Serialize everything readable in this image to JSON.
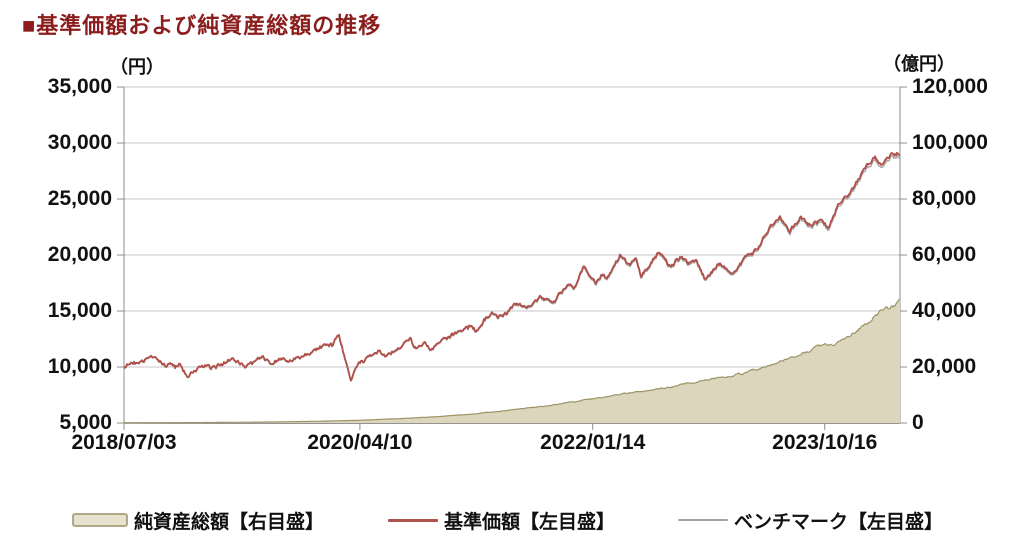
{
  "header": {
    "title": "■基準価額および純資産総額の推移"
  },
  "axes": {
    "left_unit": "（円）",
    "right_unit": "（億円）"
  },
  "colors": {
    "title": "#8b1d1d",
    "nav_line": "#b0524b",
    "benchmark_line": "#a3a3a3",
    "area_fill": "#dbd6bc",
    "area_stroke": "#9e9468",
    "legend_area_fill": "#e6e2cf",
    "legend_area_border": "#b0a883",
    "grid": "#c6c6c6",
    "axis": "#8c8c8c",
    "axis_bottom": "#707070",
    "text": "#111111"
  },
  "legend": {
    "items": [
      {
        "label": "純資産総額【右目盛】",
        "swatch": "area"
      },
      {
        "label": "基準価額【左目盛】",
        "swatch": "nav-line"
      },
      {
        "label": "ベンチマーク【左目盛】",
        "swatch": "benchmark-line"
      }
    ]
  },
  "chart_data": {
    "type": "combo-area-line",
    "title": "基準価額および純資産総額の推移",
    "grid": true,
    "legend_position": "bottom",
    "left_axis": {
      "unit": "円",
      "min": 5000,
      "max": 35000,
      "step": 5000,
      "tick_labels": [
        "35,000",
        "30,000",
        "25,000",
        "20,000",
        "15,000",
        "10,000",
        "5,000"
      ]
    },
    "right_axis": {
      "unit": "億円",
      "min": 0,
      "max": 120000,
      "step": 20000,
      "tick_labels": [
        "120,000",
        "100,000",
        "80,000",
        "60,000",
        "40,000",
        "20,000",
        "0"
      ]
    },
    "x_ticks": [
      {
        "t": 0.0,
        "label": "2018/07/03"
      },
      {
        "t": 0.304,
        "label": "2020/04/10"
      },
      {
        "t": 0.604,
        "label": "2022/01/14"
      },
      {
        "t": 0.903,
        "label": "2023/10/16"
      }
    ],
    "series": [
      {
        "role": "assets",
        "name": "純資産総額【右目盛】",
        "type": "area",
        "axis": "right",
        "points": [
          [
            0,
            20
          ],
          [
            0.05,
            90
          ],
          [
            0.1,
            160
          ],
          [
            0.15,
            260
          ],
          [
            0.2,
            400
          ],
          [
            0.25,
            620
          ],
          [
            0.301,
            950
          ],
          [
            0.35,
            1500
          ],
          [
            0.4,
            2200
          ],
          [
            0.45,
            3200
          ],
          [
            0.5,
            4700
          ],
          [
            0.55,
            6300
          ],
          [
            0.604,
            8500
          ],
          [
            0.65,
            10700
          ],
          [
            0.666,
            11200
          ],
          [
            0.7,
            12600
          ],
          [
            0.75,
            15600
          ],
          [
            0.783,
            16600
          ],
          [
            0.8,
            17900
          ],
          [
            0.83,
            20600
          ],
          [
            0.86,
            23600
          ],
          [
            0.89,
            26800
          ],
          [
            0.903,
            28200
          ],
          [
            0.912,
            28600
          ],
          [
            0.918,
            28400
          ],
          [
            0.935,
            31200
          ],
          [
            0.952,
            34800
          ],
          [
            0.97,
            38600
          ],
          [
            0.985,
            41000
          ],
          [
            1,
            43000
          ]
        ]
      },
      {
        "role": "benchmark",
        "name": "ベンチマーク【左目盛】",
        "type": "line",
        "axis": "left",
        "points": [
          [
            0,
            10108
          ],
          [
            0.02,
            10355
          ],
          [
            0.04,
            10800
          ],
          [
            0.055,
            9910
          ],
          [
            0.059,
            10405
          ],
          [
            0.066,
            9960
          ],
          [
            0.071,
            10306
          ],
          [
            0.081,
            8910
          ],
          [
            0.101,
            10009
          ],
          [
            0.115,
            9910
          ],
          [
            0.14,
            10750
          ],
          [
            0.156,
            10158
          ],
          [
            0.18,
            10948
          ],
          [
            0.19,
            10355
          ],
          [
            0.206,
            10899
          ],
          [
            0.215,
            10553
          ],
          [
            0.252,
            11738
          ],
          [
            0.262,
            12084
          ],
          [
            0.269,
            11788
          ],
          [
            0.277,
            12825
          ],
          [
            0.292,
            8560
          ],
          [
            0.301,
            10207
          ],
          [
            0.328,
            11343
          ],
          [
            0.338,
            10899
          ],
          [
            0.368,
            12430
          ],
          [
            0.378,
            11491
          ],
          [
            0.387,
            12035
          ],
          [
            0.395,
            11442
          ],
          [
            0.424,
            12726
          ],
          [
            0.446,
            13566
          ],
          [
            0.453,
            13122
          ],
          [
            0.473,
            14801
          ],
          [
            0.485,
            14307
          ],
          [
            0.507,
            15493
          ],
          [
            0.517,
            15098
          ],
          [
            0.538,
            16184
          ],
          [
            0.552,
            15394
          ],
          [
            0.573,
            17469
          ],
          [
            0.58,
            16777
          ],
          [
            0.592,
            18852
          ],
          [
            0.604,
            17666
          ],
          [
            0.608,
            17419
          ],
          [
            0.618,
            18457
          ],
          [
            0.622,
            17666
          ],
          [
            0.64,
            19939
          ],
          [
            0.652,
            18753
          ],
          [
            0.66,
            19445
          ],
          [
            0.666,
            17963
          ],
          [
            0.69,
            20136
          ],
          [
            0.704,
            18753
          ],
          [
            0.717,
            19741
          ],
          [
            0.728,
            19148
          ],
          [
            0.737,
            19544
          ],
          [
            0.748,
            17864
          ],
          [
            0.756,
            18160
          ],
          [
            0.768,
            19148
          ],
          [
            0.783,
            17963
          ],
          [
            0.801,
            19544
          ],
          [
            0.818,
            20433
          ],
          [
            0.83,
            22112
          ],
          [
            0.845,
            23199
          ],
          [
            0.858,
            22014
          ],
          [
            0.872,
            23298
          ],
          [
            0.886,
            22409
          ],
          [
            0.896,
            22903
          ],
          [
            0.903,
            22606
          ],
          [
            0.908,
            22112
          ],
          [
            0.92,
            24187
          ],
          [
            0.935,
            25175
          ],
          [
            0.95,
            26954
          ],
          [
            0.968,
            28633
          ],
          [
            0.976,
            27546
          ],
          [
            0.99,
            28831
          ],
          [
            1,
            28633
          ]
        ]
      },
      {
        "role": "nav",
        "name": "基準価額【左目盛】",
        "type": "line",
        "axis": "left",
        "points": [
          [
            0,
            10150
          ],
          [
            0.02,
            10400
          ],
          [
            0.04,
            10850
          ],
          [
            0.055,
            9950
          ],
          [
            0.059,
            10450
          ],
          [
            0.066,
            10000
          ],
          [
            0.071,
            10350
          ],
          [
            0.081,
            8950
          ],
          [
            0.101,
            10050
          ],
          [
            0.115,
            9950
          ],
          [
            0.14,
            10800
          ],
          [
            0.156,
            10200
          ],
          [
            0.18,
            11000
          ],
          [
            0.19,
            10400
          ],
          [
            0.206,
            10950
          ],
          [
            0.215,
            10600
          ],
          [
            0.252,
            11800
          ],
          [
            0.262,
            12150
          ],
          [
            0.269,
            11850
          ],
          [
            0.277,
            12900
          ],
          [
            0.292,
            8600
          ],
          [
            0.301,
            10250
          ],
          [
            0.328,
            11400
          ],
          [
            0.338,
            10950
          ],
          [
            0.368,
            12500
          ],
          [
            0.378,
            11550
          ],
          [
            0.387,
            12100
          ],
          [
            0.395,
            11500
          ],
          [
            0.424,
            12800
          ],
          [
            0.446,
            13650
          ],
          [
            0.453,
            13200
          ],
          [
            0.473,
            14900
          ],
          [
            0.485,
            14400
          ],
          [
            0.507,
            15600
          ],
          [
            0.517,
            15200
          ],
          [
            0.538,
            16300
          ],
          [
            0.552,
            15500
          ],
          [
            0.573,
            17600
          ],
          [
            0.58,
            16900
          ],
          [
            0.592,
            19000
          ],
          [
            0.604,
            17800
          ],
          [
            0.608,
            17550
          ],
          [
            0.618,
            18600
          ],
          [
            0.622,
            17800
          ],
          [
            0.64,
            20100
          ],
          [
            0.652,
            18900
          ],
          [
            0.66,
            19600
          ],
          [
            0.666,
            18100
          ],
          [
            0.69,
            20300
          ],
          [
            0.704,
            18900
          ],
          [
            0.717,
            19900
          ],
          [
            0.728,
            19300
          ],
          [
            0.737,
            19700
          ],
          [
            0.748,
            18000
          ],
          [
            0.756,
            18300
          ],
          [
            0.768,
            19300
          ],
          [
            0.783,
            18100
          ],
          [
            0.801,
            19700
          ],
          [
            0.818,
            20600
          ],
          [
            0.83,
            22300
          ],
          [
            0.845,
            23400
          ],
          [
            0.858,
            22200
          ],
          [
            0.872,
            23500
          ],
          [
            0.886,
            22600
          ],
          [
            0.896,
            23100
          ],
          [
            0.903,
            22800
          ],
          [
            0.908,
            22300
          ],
          [
            0.92,
            24400
          ],
          [
            0.935,
            25400
          ],
          [
            0.95,
            27200
          ],
          [
            0.968,
            28900
          ],
          [
            0.976,
            27800
          ],
          [
            0.99,
            29100
          ],
          [
            1,
            28900
          ]
        ]
      }
    ]
  }
}
